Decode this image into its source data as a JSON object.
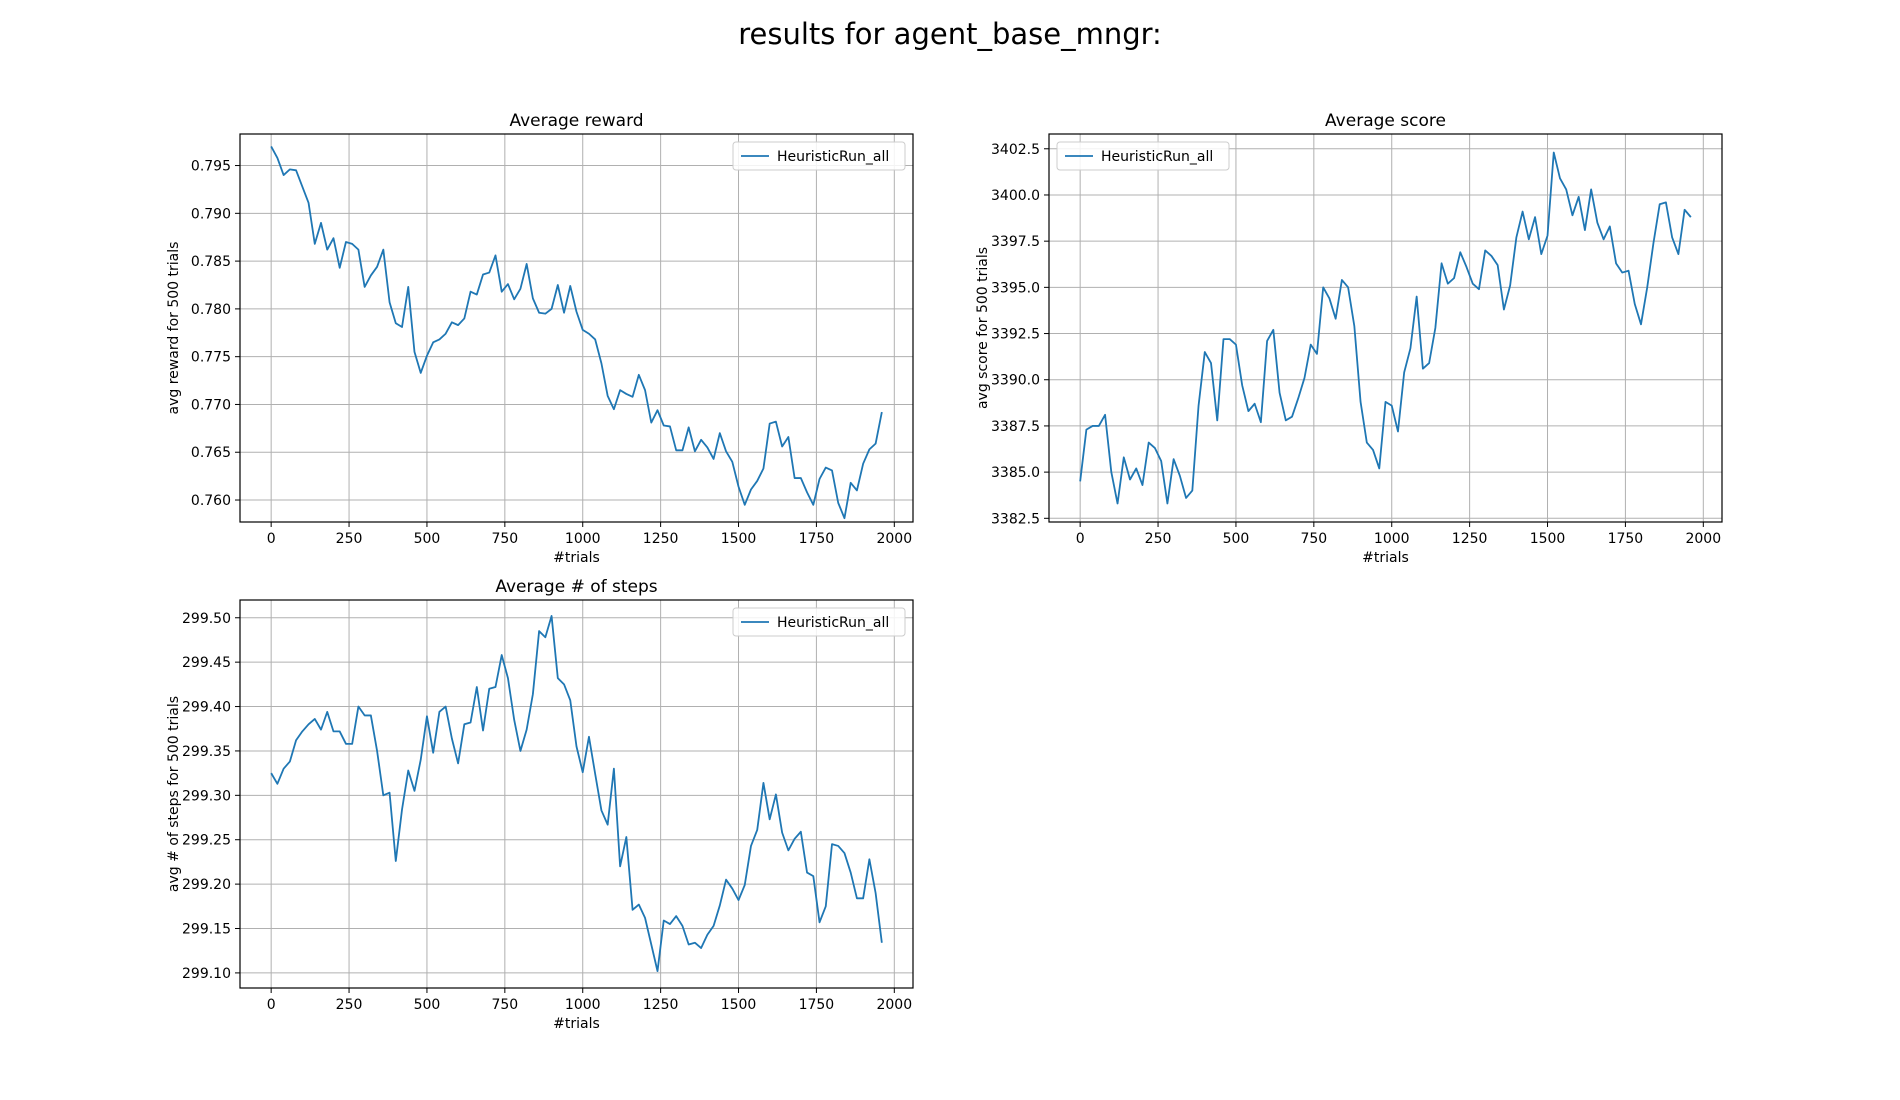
{
  "figure": {
    "title": "results for agent_base_mngr:"
  },
  "colors": {
    "series": "#1f77b4"
  },
  "chart_data": [
    {
      "id": "reward",
      "type": "line",
      "title": "Average reward",
      "xlabel": "#trials",
      "ylabel": "avg reward for 500 trials",
      "xlim": [
        -100,
        2060
      ],
      "ylim": [
        0.7577,
        0.7983
      ],
      "xticks": [
        0,
        250,
        500,
        750,
        1000,
        1250,
        1500,
        1750,
        2000
      ],
      "xtick_labels": [
        "0",
        "250",
        "500",
        "750",
        "1000",
        "1250",
        "1500",
        "1750",
        "2000"
      ],
      "yticks": [
        0.76,
        0.765,
        0.77,
        0.775,
        0.78,
        0.785,
        0.79,
        0.795
      ],
      "ytick_labels": [
        "0.760",
        "0.765",
        "0.770",
        "0.775",
        "0.780",
        "0.785",
        "0.790",
        "0.795"
      ],
      "grid": true,
      "legend_position": "top-right",
      "series": [
        {
          "name": "HeuristicRun_all",
          "x": [
            0,
            20,
            40,
            60,
            80,
            100,
            120,
            140,
            160,
            180,
            200,
            220,
            240,
            260,
            280,
            300,
            320,
            340,
            360,
            380,
            400,
            420,
            440,
            460,
            480,
            500,
            520,
            540,
            560,
            580,
            600,
            620,
            640,
            660,
            680,
            700,
            720,
            740,
            760,
            780,
            800,
            820,
            840,
            860,
            880,
            900,
            920,
            940,
            960,
            980,
            1000,
            1020,
            1040,
            1060,
            1080,
            1100,
            1120,
            1140,
            1160,
            1180,
            1200,
            1220,
            1240,
            1260,
            1280,
            1300,
            1320,
            1340,
            1360,
            1380,
            1400,
            1420,
            1440,
            1460,
            1480,
            1500,
            1520,
            1540,
            1560,
            1580,
            1600,
            1620,
            1640,
            1660,
            1680,
            1700,
            1720,
            1740,
            1760,
            1780,
            1800,
            1820,
            1840,
            1860,
            1880,
            1900,
            1920,
            1940,
            1960
          ],
          "y": [
            0.797,
            0.7958,
            0.794,
            0.7946,
            0.7945,
            0.7928,
            0.7911,
            0.7868,
            0.789,
            0.7862,
            0.7874,
            0.7843,
            0.787,
            0.7868,
            0.7862,
            0.7823,
            0.7835,
            0.7844,
            0.7862,
            0.7807,
            0.7785,
            0.7781,
            0.7823,
            0.7755,
            0.7733,
            0.7751,
            0.7765,
            0.7768,
            0.7774,
            0.7786,
            0.7783,
            0.779,
            0.7818,
            0.7815,
            0.7836,
            0.7838,
            0.7856,
            0.7818,
            0.7826,
            0.781,
            0.7821,
            0.7847,
            0.7811,
            0.7796,
            0.7795,
            0.78,
            0.7825,
            0.7796,
            0.7824,
            0.7797,
            0.7778,
            0.7774,
            0.7768,
            0.7743,
            0.7709,
            0.7695,
            0.7715,
            0.7711,
            0.7708,
            0.7731,
            0.7715,
            0.7681,
            0.7694,
            0.7678,
            0.7677,
            0.7652,
            0.7652,
            0.7676,
            0.7651,
            0.7663,
            0.7655,
            0.7643,
            0.767,
            0.7651,
            0.764,
            0.7614,
            0.7595,
            0.7611,
            0.762,
            0.7633,
            0.768,
            0.7682,
            0.7656,
            0.7666,
            0.7623,
            0.7623,
            0.7608,
            0.7595,
            0.7622,
            0.7634,
            0.7631,
            0.7597,
            0.7581,
            0.7618,
            0.761,
            0.7638,
            0.7653,
            0.7659,
            0.7692
          ]
        }
      ]
    },
    {
      "id": "score",
      "type": "line",
      "title": "Average score",
      "xlabel": "#trials",
      "ylabel": "avg score for 500 trials",
      "xlim": [
        -100,
        2060
      ],
      "ylim": [
        3382.3,
        3403.3
      ],
      "xticks": [
        0,
        250,
        500,
        750,
        1000,
        1250,
        1500,
        1750,
        2000
      ],
      "xtick_labels": [
        "0",
        "250",
        "500",
        "750",
        "1000",
        "1250",
        "1500",
        "1750",
        "2000"
      ],
      "yticks": [
        3382.5,
        3385.0,
        3387.5,
        3390.0,
        3392.5,
        3395.0,
        3397.5,
        3400.0,
        3402.5
      ],
      "ytick_labels": [
        "3382.5",
        "3385.0",
        "3387.5",
        "3390.0",
        "3392.5",
        "3395.0",
        "3397.5",
        "3400.0",
        "3402.5"
      ],
      "grid": true,
      "legend_position": "top-left",
      "series": [
        {
          "name": "HeuristicRun_all",
          "x": [
            0,
            20,
            40,
            60,
            80,
            100,
            120,
            140,
            160,
            180,
            200,
            220,
            240,
            260,
            280,
            300,
            320,
            340,
            360,
            380,
            400,
            420,
            440,
            460,
            480,
            500,
            520,
            540,
            560,
            580,
            600,
            620,
            640,
            660,
            680,
            700,
            720,
            740,
            760,
            780,
            800,
            820,
            840,
            860,
            880,
            900,
            920,
            940,
            960,
            980,
            1000,
            1020,
            1040,
            1060,
            1080,
            1100,
            1120,
            1140,
            1160,
            1180,
            1200,
            1220,
            1240,
            1260,
            1280,
            1300,
            1320,
            1340,
            1360,
            1380,
            1400,
            1420,
            1440,
            1460,
            1480,
            1500,
            1520,
            1540,
            1560,
            1580,
            1600,
            1620,
            1640,
            1660,
            1680,
            1700,
            1720,
            1740,
            1760,
            1780,
            1800,
            1820,
            1840,
            1860,
            1880,
            1900,
            1920,
            1940,
            1960
          ],
          "y": [
            3384.5,
            3387.3,
            3387.5,
            3387.5,
            3388.1,
            3385.0,
            3383.3,
            3385.8,
            3384.6,
            3385.2,
            3384.3,
            3386.6,
            3386.3,
            3385.6,
            3383.3,
            3385.7,
            3384.8,
            3383.6,
            3384.0,
            3388.6,
            3391.5,
            3390.9,
            3387.8,
            3392.2,
            3392.2,
            3391.9,
            3389.7,
            3388.3,
            3388.7,
            3387.7,
            3392.1,
            3392.7,
            3389.3,
            3387.8,
            3388.0,
            3389.0,
            3390.1,
            3391.9,
            3391.4,
            3395.0,
            3394.4,
            3393.3,
            3395.4,
            3395.0,
            3392.9,
            3388.8,
            3386.6,
            3386.2,
            3385.2,
            3388.8,
            3388.6,
            3387.2,
            3390.4,
            3391.7,
            3394.5,
            3390.6,
            3390.9,
            3392.8,
            3396.3,
            3395.2,
            3395.5,
            3396.9,
            3396.1,
            3395.2,
            3394.9,
            3397.0,
            3396.7,
            3396.2,
            3393.8,
            3395.1,
            3397.7,
            3399.1,
            3397.6,
            3398.8,
            3396.8,
            3397.8,
            3402.3,
            3400.9,
            3400.3,
            3398.9,
            3399.9,
            3398.1,
            3400.3,
            3398.5,
            3397.6,
            3398.3,
            3396.3,
            3395.8,
            3395.9,
            3394.1,
            3393.0,
            3395.0,
            3397.4,
            3399.5,
            3399.6,
            3397.7,
            3396.8,
            3399.2,
            3398.8
          ]
        }
      ]
    },
    {
      "id": "steps",
      "type": "line",
      "title": "Average # of steps",
      "xlabel": "#trials",
      "ylabel": "avg # of steps for 500 trials",
      "xlim": [
        -100,
        2060
      ],
      "ylim": [
        299.083,
        299.52
      ],
      "xticks": [
        0,
        250,
        500,
        750,
        1000,
        1250,
        1500,
        1750,
        2000
      ],
      "xtick_labels": [
        "0",
        "250",
        "500",
        "750",
        "1000",
        "1250",
        "1500",
        "1750",
        "2000"
      ],
      "yticks": [
        299.1,
        299.15,
        299.2,
        299.25,
        299.3,
        299.35,
        299.4,
        299.45,
        299.5
      ],
      "ytick_labels": [
        "299.10",
        "299.15",
        "299.20",
        "299.25",
        "299.30",
        "299.35",
        "299.40",
        "299.45",
        "299.50"
      ],
      "grid": true,
      "legend_position": "top-right",
      "series": [
        {
          "name": "HeuristicRun_all",
          "x": [
            0,
            20,
            40,
            60,
            80,
            100,
            120,
            140,
            160,
            180,
            200,
            220,
            240,
            260,
            280,
            300,
            320,
            340,
            360,
            380,
            400,
            420,
            440,
            460,
            480,
            500,
            520,
            540,
            560,
            580,
            600,
            620,
            640,
            660,
            680,
            700,
            720,
            740,
            760,
            780,
            800,
            820,
            840,
            860,
            880,
            900,
            920,
            940,
            960,
            980,
            1000,
            1020,
            1040,
            1060,
            1080,
            1100,
            1120,
            1140,
            1160,
            1180,
            1200,
            1220,
            1240,
            1260,
            1280,
            1300,
            1320,
            1340,
            1360,
            1380,
            1400,
            1420,
            1440,
            1460,
            1480,
            1500,
            1520,
            1540,
            1560,
            1580,
            1600,
            1620,
            1640,
            1660,
            1680,
            1700,
            1720,
            1740,
            1760,
            1780,
            1800,
            1820,
            1840,
            1860,
            1880,
            1900,
            1920,
            1940,
            1960
          ],
          "y": [
            299.325,
            299.313,
            299.33,
            299.338,
            299.362,
            299.372,
            299.38,
            299.386,
            299.374,
            299.394,
            299.372,
            299.372,
            299.358,
            299.358,
            299.4,
            299.39,
            299.39,
            299.35,
            299.3,
            299.303,
            299.226,
            299.284,
            299.328,
            299.305,
            299.34,
            299.389,
            299.348,
            299.394,
            299.4,
            299.364,
            299.336,
            299.38,
            299.382,
            299.422,
            299.373,
            299.42,
            299.422,
            299.458,
            299.432,
            299.385,
            299.35,
            299.374,
            299.414,
            299.485,
            299.478,
            299.502,
            299.432,
            299.425,
            299.407,
            299.355,
            299.326,
            299.366,
            299.324,
            299.283,
            299.267,
            299.33,
            299.22,
            299.253,
            299.171,
            299.177,
            299.162,
            299.132,
            299.102,
            299.159,
            299.155,
            299.164,
            299.153,
            299.132,
            299.134,
            299.128,
            299.143,
            299.153,
            299.176,
            299.205,
            299.195,
            299.182,
            299.199,
            299.243,
            299.261,
            299.314,
            299.273,
            299.301,
            299.258,
            299.238,
            299.251,
            299.259,
            299.213,
            299.209,
            299.157,
            299.175,
            299.245,
            299.243,
            299.235,
            299.213,
            299.184,
            299.184,
            299.228,
            299.19,
            299.134
          ]
        }
      ]
    }
  ]
}
